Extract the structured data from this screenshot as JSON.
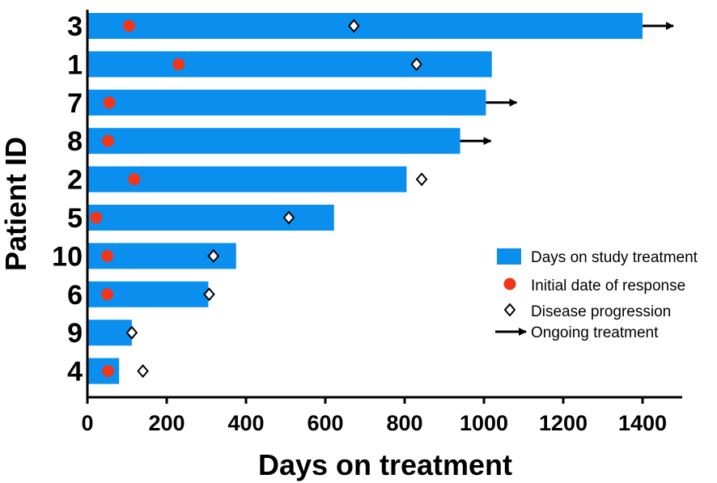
{
  "chart_data": {
    "type": "bar",
    "orientation": "horizontal",
    "title": "",
    "xlabel": "Days on treatment",
    "ylabel": "Patient ID",
    "xlim": [
      0,
      1500
    ],
    "xticks": [
      0,
      200,
      400,
      600,
      800,
      1000,
      1200,
      1400
    ],
    "grid": false,
    "legend_position": "right",
    "colors": {
      "bar": "#0a8fef",
      "response": "#f0361c",
      "marker_stroke": "#000000"
    },
    "patients": [
      {
        "id": "3",
        "days": 1400,
        "response": 105,
        "progression": 672,
        "ongoing": true
      },
      {
        "id": "1",
        "days": 1020,
        "response": 230,
        "progression": 830,
        "ongoing": false
      },
      {
        "id": "7",
        "days": 1005,
        "response": 55,
        "progression": null,
        "ongoing": true
      },
      {
        "id": "8",
        "days": 940,
        "response": 52,
        "progression": null,
        "ongoing": true
      },
      {
        "id": "2",
        "days": 805,
        "response": 118,
        "progression": 843,
        "ongoing": false
      },
      {
        "id": "5",
        "days": 622,
        "response": 22,
        "progression": 508,
        "ongoing": false
      },
      {
        "id": "10",
        "days": 375,
        "response": 50,
        "progression": 318,
        "ongoing": false
      },
      {
        "id": "6",
        "days": 305,
        "response": 50,
        "progression": 307,
        "ongoing": false
      },
      {
        "id": "9",
        "days": 112,
        "response": null,
        "progression": 112,
        "ongoing": false
      },
      {
        "id": "4",
        "days": 80,
        "response": 52,
        "progression": 140,
        "ongoing": false
      }
    ],
    "legend": [
      {
        "key": "bar",
        "label": "Days on study treatment"
      },
      {
        "key": "response",
        "label": "Initial date of response"
      },
      {
        "key": "progression",
        "label": "Disease progression"
      },
      {
        "key": "ongoing",
        "label": "Ongoing treatment"
      }
    ]
  }
}
